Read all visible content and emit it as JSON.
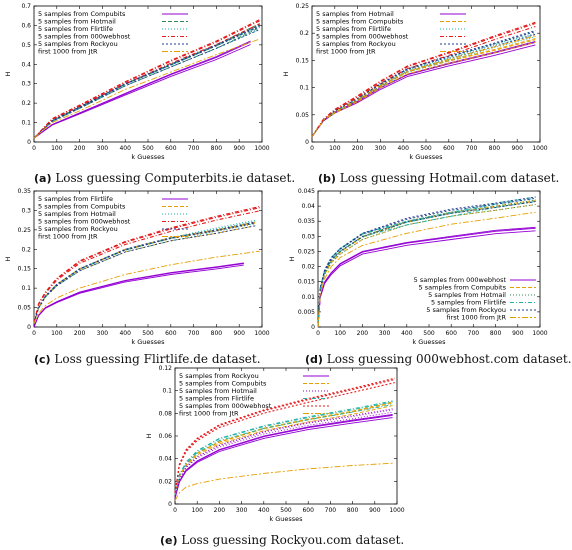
{
  "colors": {
    "violet": "#9400d3",
    "magenta": "#ff00ff",
    "green": "#2e8b57",
    "cyan": "#20b2aa",
    "navy": "#1f3a8a",
    "red": "#e41a1c",
    "orange": "#e69f00",
    "teal": "#00a0a0"
  },
  "captions": [
    {
      "id": "a",
      "letter": "(a)",
      "text": "Loss guessing Computerbits.ie dataset."
    },
    {
      "id": "b",
      "letter": "(b)",
      "text": "Loss guessing Hotmail.com dataset."
    },
    {
      "id": "c",
      "letter": "(c)",
      "text": "Loss guessing Flirtlife.de dataset."
    },
    {
      "id": "d",
      "letter": "(d)",
      "text": "Loss guessing 000webhost.com dataset."
    },
    {
      "id": "e",
      "letter": "(e)",
      "text": "Loss guessing Rockyou.com dataset."
    }
  ],
  "chart_data": [
    {
      "id": "a",
      "type": "line",
      "xlabel": "k Guesses",
      "ylabel": "H",
      "xlim": [
        0,
        1000
      ],
      "ylim": [
        0,
        0.7
      ],
      "xticks": [
        0,
        100,
        200,
        300,
        400,
        500,
        600,
        700,
        800,
        900,
        1000
      ],
      "yticks": [
        0,
        0.1,
        0.2,
        0.3,
        0.4,
        0.5,
        0.6,
        0.7
      ],
      "legend_position": "top-left",
      "series": [
        {
          "name": "5 samples from Compubits",
          "color": "#9400d3",
          "x": [
            0,
            80,
            200,
            400,
            600,
            800,
            950
          ],
          "y": [
            0.02,
            0.09,
            0.15,
            0.25,
            0.35,
            0.44,
            0.52
          ]
        },
        {
          "name": "5 samples from Hotmail",
          "color": "#2e8b57",
          "x": [
            0,
            80,
            200,
            400,
            600,
            800,
            990
          ],
          "y": [
            0.02,
            0.11,
            0.18,
            0.3,
            0.4,
            0.5,
            0.61
          ]
        },
        {
          "name": "5 samples from Flirtlife",
          "color": "#20b2aa",
          "x": [
            0,
            80,
            200,
            400,
            600,
            800,
            990
          ],
          "y": [
            0.02,
            0.11,
            0.18,
            0.3,
            0.4,
            0.5,
            0.6
          ]
        },
        {
          "name": "5 samples from 000webhost",
          "color": "#e41a1c",
          "x": [
            0,
            80,
            200,
            400,
            600,
            800,
            990
          ],
          "y": [
            0.02,
            0.12,
            0.19,
            0.31,
            0.42,
            0.52,
            0.63
          ]
        },
        {
          "name": "5 samples from Rockyou",
          "color": "#1f3a8a",
          "x": [
            0,
            80,
            200,
            400,
            600,
            800,
            990
          ],
          "y": [
            0.02,
            0.11,
            0.18,
            0.3,
            0.4,
            0.5,
            0.6
          ]
        },
        {
          "name": "first 1000 from JtR",
          "color": "#e69f00",
          "x": [
            0,
            80,
            200,
            400,
            600,
            800,
            990
          ],
          "y": [
            0.02,
            0.1,
            0.16,
            0.27,
            0.36,
            0.45,
            0.53
          ]
        }
      ]
    },
    {
      "id": "b",
      "type": "line",
      "xlabel": "k Guesses",
      "ylabel": "H",
      "xlim": [
        0,
        1000
      ],
      "ylim": [
        0,
        0.25
      ],
      "xticks": [
        0,
        100,
        200,
        300,
        400,
        500,
        600,
        700,
        800,
        900,
        1000
      ],
      "yticks": [
        0,
        0.05,
        0.1,
        0.15,
        0.2,
        0.25
      ],
      "legend_position": "top-left",
      "series": [
        {
          "name": "5 samples from Hotmail",
          "color": "#9400d3",
          "x": [
            0,
            50,
            100,
            200,
            300,
            420,
            600,
            800,
            980
          ],
          "y": [
            0.01,
            0.04,
            0.055,
            0.075,
            0.1,
            0.125,
            0.145,
            0.165,
            0.185
          ]
        },
        {
          "name": "5 samples from Compubits",
          "color": "#e69f00",
          "x": [
            0,
            50,
            100,
            200,
            300,
            420,
            600,
            800,
            980
          ],
          "y": [
            0.01,
            0.04,
            0.055,
            0.077,
            0.103,
            0.13,
            0.15,
            0.17,
            0.19
          ]
        },
        {
          "name": "5 samples from Flirtlife",
          "color": "#20b2aa",
          "x": [
            0,
            50,
            100,
            200,
            300,
            420,
            600,
            800,
            980
          ],
          "y": [
            0.01,
            0.04,
            0.057,
            0.08,
            0.106,
            0.133,
            0.155,
            0.18,
            0.2
          ]
        },
        {
          "name": "5 samples from 000webhost",
          "color": "#e41a1c",
          "x": [
            0,
            50,
            100,
            200,
            300,
            420,
            600,
            800,
            980
          ],
          "y": [
            0.01,
            0.042,
            0.06,
            0.085,
            0.112,
            0.14,
            0.165,
            0.195,
            0.22
          ]
        },
        {
          "name": "5 samples from Rockyou",
          "color": "#1f3a8a",
          "x": [
            0,
            50,
            100,
            200,
            300,
            420,
            600,
            800,
            980
          ],
          "y": [
            0.01,
            0.04,
            0.057,
            0.08,
            0.107,
            0.135,
            0.158,
            0.182,
            0.205
          ]
        },
        {
          "name": "first 1000 from JtR",
          "color": "#e69f00",
          "x": [
            0,
            50,
            100,
            200,
            300,
            420,
            600,
            800,
            980
          ],
          "y": [
            0.01,
            0.04,
            0.055,
            0.078,
            0.104,
            0.13,
            0.152,
            0.175,
            0.195
          ]
        }
      ]
    },
    {
      "id": "c",
      "type": "line",
      "xlabel": "k Guesses",
      "ylabel": "H",
      "xlim": [
        0,
        1000
      ],
      "ylim": [
        0,
        0.35
      ],
      "xticks": [
        0,
        100,
        200,
        300,
        400,
        500,
        600,
        700,
        800,
        900,
        1000
      ],
      "yticks": [
        0,
        0.05,
        0.1,
        0.15,
        0.2,
        0.25,
        0.3,
        0.35
      ],
      "legend_position": "top-left",
      "series": [
        {
          "name": "5 samples from Flirtlife",
          "color": "#9400d3",
          "x": [
            0,
            20,
            50,
            100,
            200,
            400,
            600,
            800,
            920
          ],
          "y": [
            0.0,
            0.03,
            0.05,
            0.065,
            0.09,
            0.12,
            0.14,
            0.155,
            0.165
          ]
        },
        {
          "name": "5 samples from Compubits",
          "color": "#e69f00",
          "x": [
            0,
            20,
            50,
            100,
            200,
            400,
            600,
            800,
            970
          ],
          "y": [
            0.01,
            0.05,
            0.08,
            0.11,
            0.15,
            0.2,
            0.23,
            0.25,
            0.27
          ]
        },
        {
          "name": "5 samples from Hotmail",
          "color": "#20b2aa",
          "x": [
            0,
            20,
            50,
            100,
            200,
            400,
            600,
            800,
            970
          ],
          "y": [
            0.01,
            0.05,
            0.08,
            0.11,
            0.15,
            0.2,
            0.23,
            0.255,
            0.275
          ]
        },
        {
          "name": "5 samples from 000webhost",
          "color": "#e41a1c",
          "x": [
            0,
            20,
            50,
            100,
            200,
            400,
            600,
            800,
            990
          ],
          "y": [
            0.01,
            0.06,
            0.09,
            0.125,
            0.17,
            0.22,
            0.255,
            0.285,
            0.31
          ]
        },
        {
          "name": "5 samples from Rockyou",
          "color": "#1f3a8a",
          "x": [
            0,
            20,
            50,
            100,
            200,
            400,
            600,
            800,
            970
          ],
          "y": [
            0.01,
            0.05,
            0.08,
            0.11,
            0.15,
            0.2,
            0.23,
            0.25,
            0.27
          ]
        },
        {
          "name": "first 1000 from JtR",
          "color": "#e69f00",
          "x": [
            0,
            20,
            50,
            100,
            200,
            400,
            600,
            800,
            990
          ],
          "y": [
            0.01,
            0.035,
            0.055,
            0.075,
            0.1,
            0.135,
            0.16,
            0.18,
            0.195
          ]
        }
      ]
    },
    {
      "id": "d",
      "type": "line",
      "xlabel": "k Guesses",
      "ylabel": "H",
      "xlim": [
        0,
        1000
      ],
      "ylim": [
        0,
        0.045
      ],
      "xticks": [
        0,
        100,
        200,
        300,
        400,
        500,
        600,
        700,
        800,
        900,
        1000
      ],
      "yticks": [
        0,
        0.005,
        0.01,
        0.015,
        0.02,
        0.025,
        0.03,
        0.035,
        0.04,
        0.045
      ],
      "legend_position": "bottom-right",
      "series": [
        {
          "name": "5 samples from 000webhost",
          "color": "#9400d3",
          "x": [
            0,
            10,
            30,
            60,
            100,
            200,
            400,
            600,
            800,
            980
          ],
          "y": [
            0.0,
            0.01,
            0.015,
            0.018,
            0.021,
            0.025,
            0.028,
            0.03,
            0.032,
            0.033
          ]
        },
        {
          "name": "5 samples from Compubits",
          "color": "#e69f00",
          "x": [
            0,
            10,
            30,
            60,
            100,
            200,
            400,
            600,
            800,
            980
          ],
          "y": [
            0.0,
            0.012,
            0.018,
            0.022,
            0.025,
            0.03,
            0.035,
            0.038,
            0.04,
            0.042
          ]
        },
        {
          "name": "5 samples from Hotmail",
          "color": "#2e8b57",
          "x": [
            0,
            10,
            30,
            60,
            100,
            200,
            400,
            600,
            800,
            980
          ],
          "y": [
            0.0,
            0.012,
            0.018,
            0.022,
            0.025,
            0.03,
            0.035,
            0.038,
            0.04,
            0.042
          ]
        },
        {
          "name": "5 samples from Flirtlife",
          "color": "#20b2aa",
          "x": [
            0,
            10,
            30,
            60,
            100,
            200,
            400,
            600,
            800,
            980
          ],
          "y": [
            0.0,
            0.013,
            0.019,
            0.023,
            0.026,
            0.031,
            0.035,
            0.038,
            0.041,
            0.043
          ]
        },
        {
          "name": "5 samples from Rockyou",
          "color": "#1f3a8a",
          "x": [
            0,
            10,
            30,
            60,
            100,
            200,
            400,
            600,
            800,
            980
          ],
          "y": [
            0.0,
            0.013,
            0.019,
            0.023,
            0.026,
            0.031,
            0.036,
            0.039,
            0.041,
            0.043
          ]
        },
        {
          "name": "first 1000 from JtR",
          "color": "#e69f00",
          "x": [
            0,
            10,
            30,
            60,
            100,
            200,
            400,
            600,
            800,
            980
          ],
          "y": [
            0.0,
            0.011,
            0.016,
            0.02,
            0.023,
            0.027,
            0.031,
            0.034,
            0.036,
            0.038
          ]
        }
      ]
    },
    {
      "id": "e",
      "type": "line",
      "xlabel": "k Guesses",
      "ylabel": "H",
      "xlim": [
        0,
        1000
      ],
      "ylim": [
        0,
        0.12
      ],
      "xticks": [
        0,
        100,
        200,
        300,
        400,
        500,
        600,
        700,
        800,
        900,
        1000
      ],
      "yticks": [
        0,
        0.02,
        0.04,
        0.06,
        0.08,
        0.1,
        0.12
      ],
      "legend_position": "top-left",
      "series": [
        {
          "name": "5 samples from Rockyou",
          "color": "#9400d3",
          "x": [
            0,
            20,
            50,
            100,
            200,
            400,
            600,
            800,
            980
          ],
          "y": [
            0.005,
            0.02,
            0.03,
            0.038,
            0.048,
            0.06,
            0.068,
            0.074,
            0.079
          ]
        },
        {
          "name": "5 samples from Compubits",
          "color": "#e69f00",
          "x": [
            0,
            20,
            50,
            100,
            200,
            400,
            600,
            800,
            980
          ],
          "y": [
            0.008,
            0.025,
            0.035,
            0.045,
            0.055,
            0.067,
            0.075,
            0.082,
            0.09
          ]
        },
        {
          "name": "5 samples from Hotmail",
          "color": "#9400d3",
          "x": [
            0,
            20,
            50,
            100,
            200,
            400,
            600,
            800,
            980
          ],
          "y": [
            0.006,
            0.022,
            0.033,
            0.042,
            0.052,
            0.064,
            0.072,
            0.078,
            0.084
          ]
        },
        {
          "name": "5 samples from Flirtlife",
          "color": "#20b2aa",
          "x": [
            0,
            20,
            50,
            100,
            200,
            400,
            600,
            800,
            980
          ],
          "y": [
            0.008,
            0.026,
            0.037,
            0.047,
            0.058,
            0.069,
            0.077,
            0.084,
            0.091
          ]
        },
        {
          "name": "5 samples from 000webhost",
          "color": "#e41a1c",
          "x": [
            0,
            20,
            50,
            100,
            200,
            400,
            600,
            800,
            990
          ],
          "y": [
            0.01,
            0.035,
            0.048,
            0.058,
            0.07,
            0.083,
            0.093,
            0.102,
            0.111
          ]
        },
        {
          "name": "first 1000 from JtR",
          "color": "#e69f00",
          "x": [
            0,
            20,
            50,
            100,
            200,
            400,
            600,
            800,
            980
          ],
          "y": [
            0.003,
            0.01,
            0.015,
            0.018,
            0.022,
            0.027,
            0.031,
            0.034,
            0.036
          ]
        }
      ]
    }
  ]
}
